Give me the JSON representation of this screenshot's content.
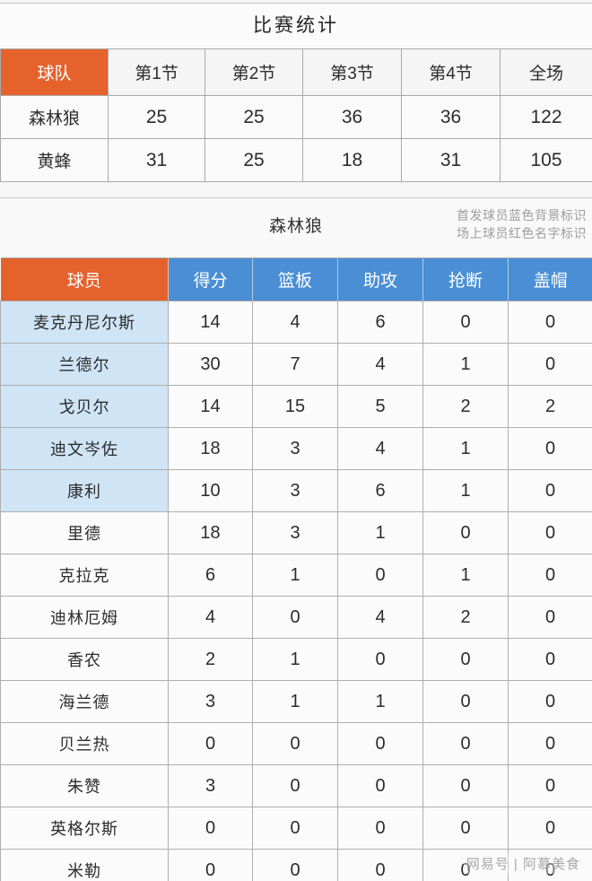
{
  "page": {
    "title": "比赛统计",
    "watermark": "网易号 | 阿慕美食"
  },
  "colors": {
    "orange": "#e5622d",
    "blue": "#4a8fd5",
    "starter_bg": "#cfe4f5",
    "header_text": "#ffffff",
    "body_text": "#2c2c2c",
    "muted_text": "#9d9d9d"
  },
  "quarter_table": {
    "headers": [
      "球队",
      "第1节",
      "第2节",
      "第3节",
      "第4节",
      "全场"
    ],
    "rows": [
      {
        "team": "森林狼",
        "values": [
          25,
          25,
          36,
          36,
          122
        ]
      },
      {
        "team": "黄蜂",
        "values": [
          31,
          25,
          18,
          31,
          105
        ]
      }
    ]
  },
  "player_section": {
    "team_title": "森林狼",
    "legend_line1": "首发球员蓝色背景标识",
    "legend_line2": "场上球员红色名字标识",
    "headers": [
      "球员",
      "得分",
      "篮板",
      "助攻",
      "抢断",
      "盖帽"
    ],
    "rows": [
      {
        "name": "麦克丹尼尔斯",
        "starter": true,
        "values": [
          14,
          4,
          6,
          0,
          0
        ]
      },
      {
        "name": "兰德尔",
        "starter": true,
        "values": [
          30,
          7,
          4,
          1,
          0
        ]
      },
      {
        "name": "戈贝尔",
        "starter": true,
        "values": [
          14,
          15,
          5,
          2,
          2
        ]
      },
      {
        "name": "迪文岑佐",
        "starter": true,
        "values": [
          18,
          3,
          4,
          1,
          0
        ]
      },
      {
        "name": "康利",
        "starter": true,
        "values": [
          10,
          3,
          6,
          1,
          0
        ]
      },
      {
        "name": "里德",
        "starter": false,
        "values": [
          18,
          3,
          1,
          0,
          0
        ]
      },
      {
        "name": "克拉克",
        "starter": false,
        "values": [
          6,
          1,
          0,
          1,
          0
        ]
      },
      {
        "name": "迪林厄姆",
        "starter": false,
        "values": [
          4,
          0,
          4,
          2,
          0
        ]
      },
      {
        "name": "香农",
        "starter": false,
        "values": [
          2,
          1,
          0,
          0,
          0
        ]
      },
      {
        "name": "海兰德",
        "starter": false,
        "values": [
          3,
          1,
          1,
          0,
          0
        ]
      },
      {
        "name": "贝兰热",
        "starter": false,
        "values": [
          0,
          0,
          0,
          0,
          0
        ]
      },
      {
        "name": "朱赞",
        "starter": false,
        "values": [
          3,
          0,
          0,
          0,
          0
        ]
      },
      {
        "name": "英格尔斯",
        "starter": false,
        "values": [
          0,
          0,
          0,
          0,
          0
        ]
      },
      {
        "name": "米勒",
        "starter": false,
        "values": [
          0,
          0,
          0,
          0,
          0
        ]
      }
    ]
  },
  "chart_data": [
    {
      "type": "table",
      "title": "比赛统计",
      "columns": [
        "球队",
        "第1节",
        "第2节",
        "第3节",
        "第4节",
        "全场"
      ],
      "rows": [
        [
          "森林狼",
          25,
          25,
          36,
          36,
          122
        ],
        [
          "黄蜂",
          31,
          25,
          18,
          31,
          105
        ]
      ]
    },
    {
      "type": "table",
      "title": "森林狼",
      "annotations": [
        "首发球员蓝色背景标识",
        "场上球员红色名字标识"
      ],
      "columns": [
        "球员",
        "得分",
        "篮板",
        "助攻",
        "抢断",
        "盖帽"
      ],
      "rows": [
        [
          "麦克丹尼尔斯",
          14,
          4,
          6,
          0,
          0
        ],
        [
          "兰德尔",
          30,
          7,
          4,
          1,
          0
        ],
        [
          "戈贝尔",
          14,
          15,
          5,
          2,
          2
        ],
        [
          "迪文岑佐",
          18,
          3,
          4,
          1,
          0
        ],
        [
          "康利",
          10,
          3,
          6,
          1,
          0
        ],
        [
          "里德",
          18,
          3,
          1,
          0,
          0
        ],
        [
          "克拉克",
          6,
          1,
          0,
          1,
          0
        ],
        [
          "迪林厄姆",
          4,
          0,
          4,
          2,
          0
        ],
        [
          "香农",
          2,
          1,
          0,
          0,
          0
        ],
        [
          "海兰德",
          3,
          1,
          1,
          0,
          0
        ],
        [
          "贝兰热",
          0,
          0,
          0,
          0,
          0
        ],
        [
          "朱赞",
          3,
          0,
          0,
          0,
          0
        ],
        [
          "英格尔斯",
          0,
          0,
          0,
          0,
          0
        ],
        [
          "米勒",
          0,
          0,
          0,
          0,
          0
        ]
      ],
      "starter_rows": [
        0,
        1,
        2,
        3,
        4
      ]
    }
  ]
}
